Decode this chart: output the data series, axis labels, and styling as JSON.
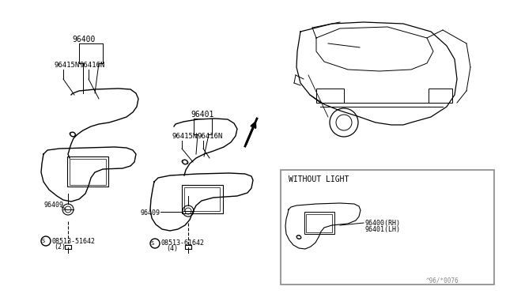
{
  "bg_color": "#ffffff",
  "line_color": "#000000",
  "label_color": "#555555",
  "fig_width": 6.4,
  "fig_height": 3.72,
  "dpi": 100,
  "parts": {
    "96400": "96400",
    "96401": "96401",
    "96415N": "96415N",
    "96416N": "96416N",
    "96409": "96409",
    "08513_51642": "08513-51642",
    "08513_61642": "08513-61642",
    "96400_RH": "96400(RH)",
    "96401_LH": "96401(LH)",
    "without_light": "WITHOUT LIGHT",
    "qty2": "(2)",
    "qty4": "(4)",
    "date_code": "^96/*0076"
  },
  "arrow_color": "#000000",
  "bracket_color": "#000000",
  "car_line_color": "#000000",
  "inset_border_color": "#888888"
}
